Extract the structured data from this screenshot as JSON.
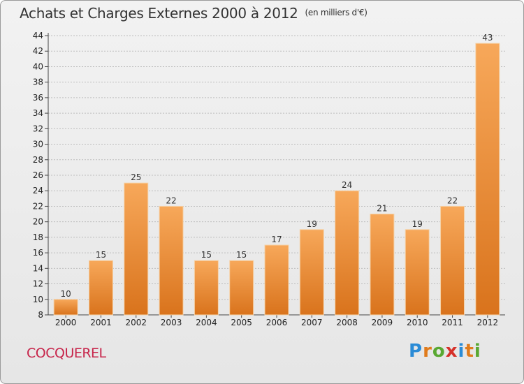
{
  "title": "Achats et Charges Externes 2000 à 2012",
  "unit": "(en milliers d'€)",
  "place": "COCQUEREL",
  "logo": {
    "letters": [
      "P",
      "r",
      "o",
      "x",
      "i",
      "t",
      "i"
    ],
    "colors": [
      "#2a8bd6",
      "#e07b1c",
      "#59a832",
      "#d6312a",
      "#2a8bd6",
      "#e07b1c",
      "#59a832"
    ]
  },
  "colors": {
    "bar_top": "#f7a85a",
    "bar_bottom": "#d9731c",
    "grid": "#bdbdbd"
  },
  "chart_data": {
    "type": "bar",
    "title": "Achats et Charges Externes 2000 à 2012",
    "subtitle": "(en milliers d'€)",
    "categories": [
      "2000",
      "2001",
      "2002",
      "2003",
      "2004",
      "2005",
      "2006",
      "2007",
      "2008",
      "2009",
      "2010",
      "2011",
      "2012"
    ],
    "values": [
      10,
      15,
      25,
      22,
      15,
      15,
      17,
      19,
      24,
      21,
      19,
      22,
      43
    ],
    "ylim": [
      8,
      44
    ],
    "yticks": [
      8,
      10,
      12,
      14,
      16,
      18,
      20,
      22,
      24,
      26,
      28,
      30,
      32,
      34,
      36,
      38,
      40,
      42,
      44
    ],
    "grid": "horizontal dashed",
    "xlabel": "",
    "ylabel": ""
  }
}
